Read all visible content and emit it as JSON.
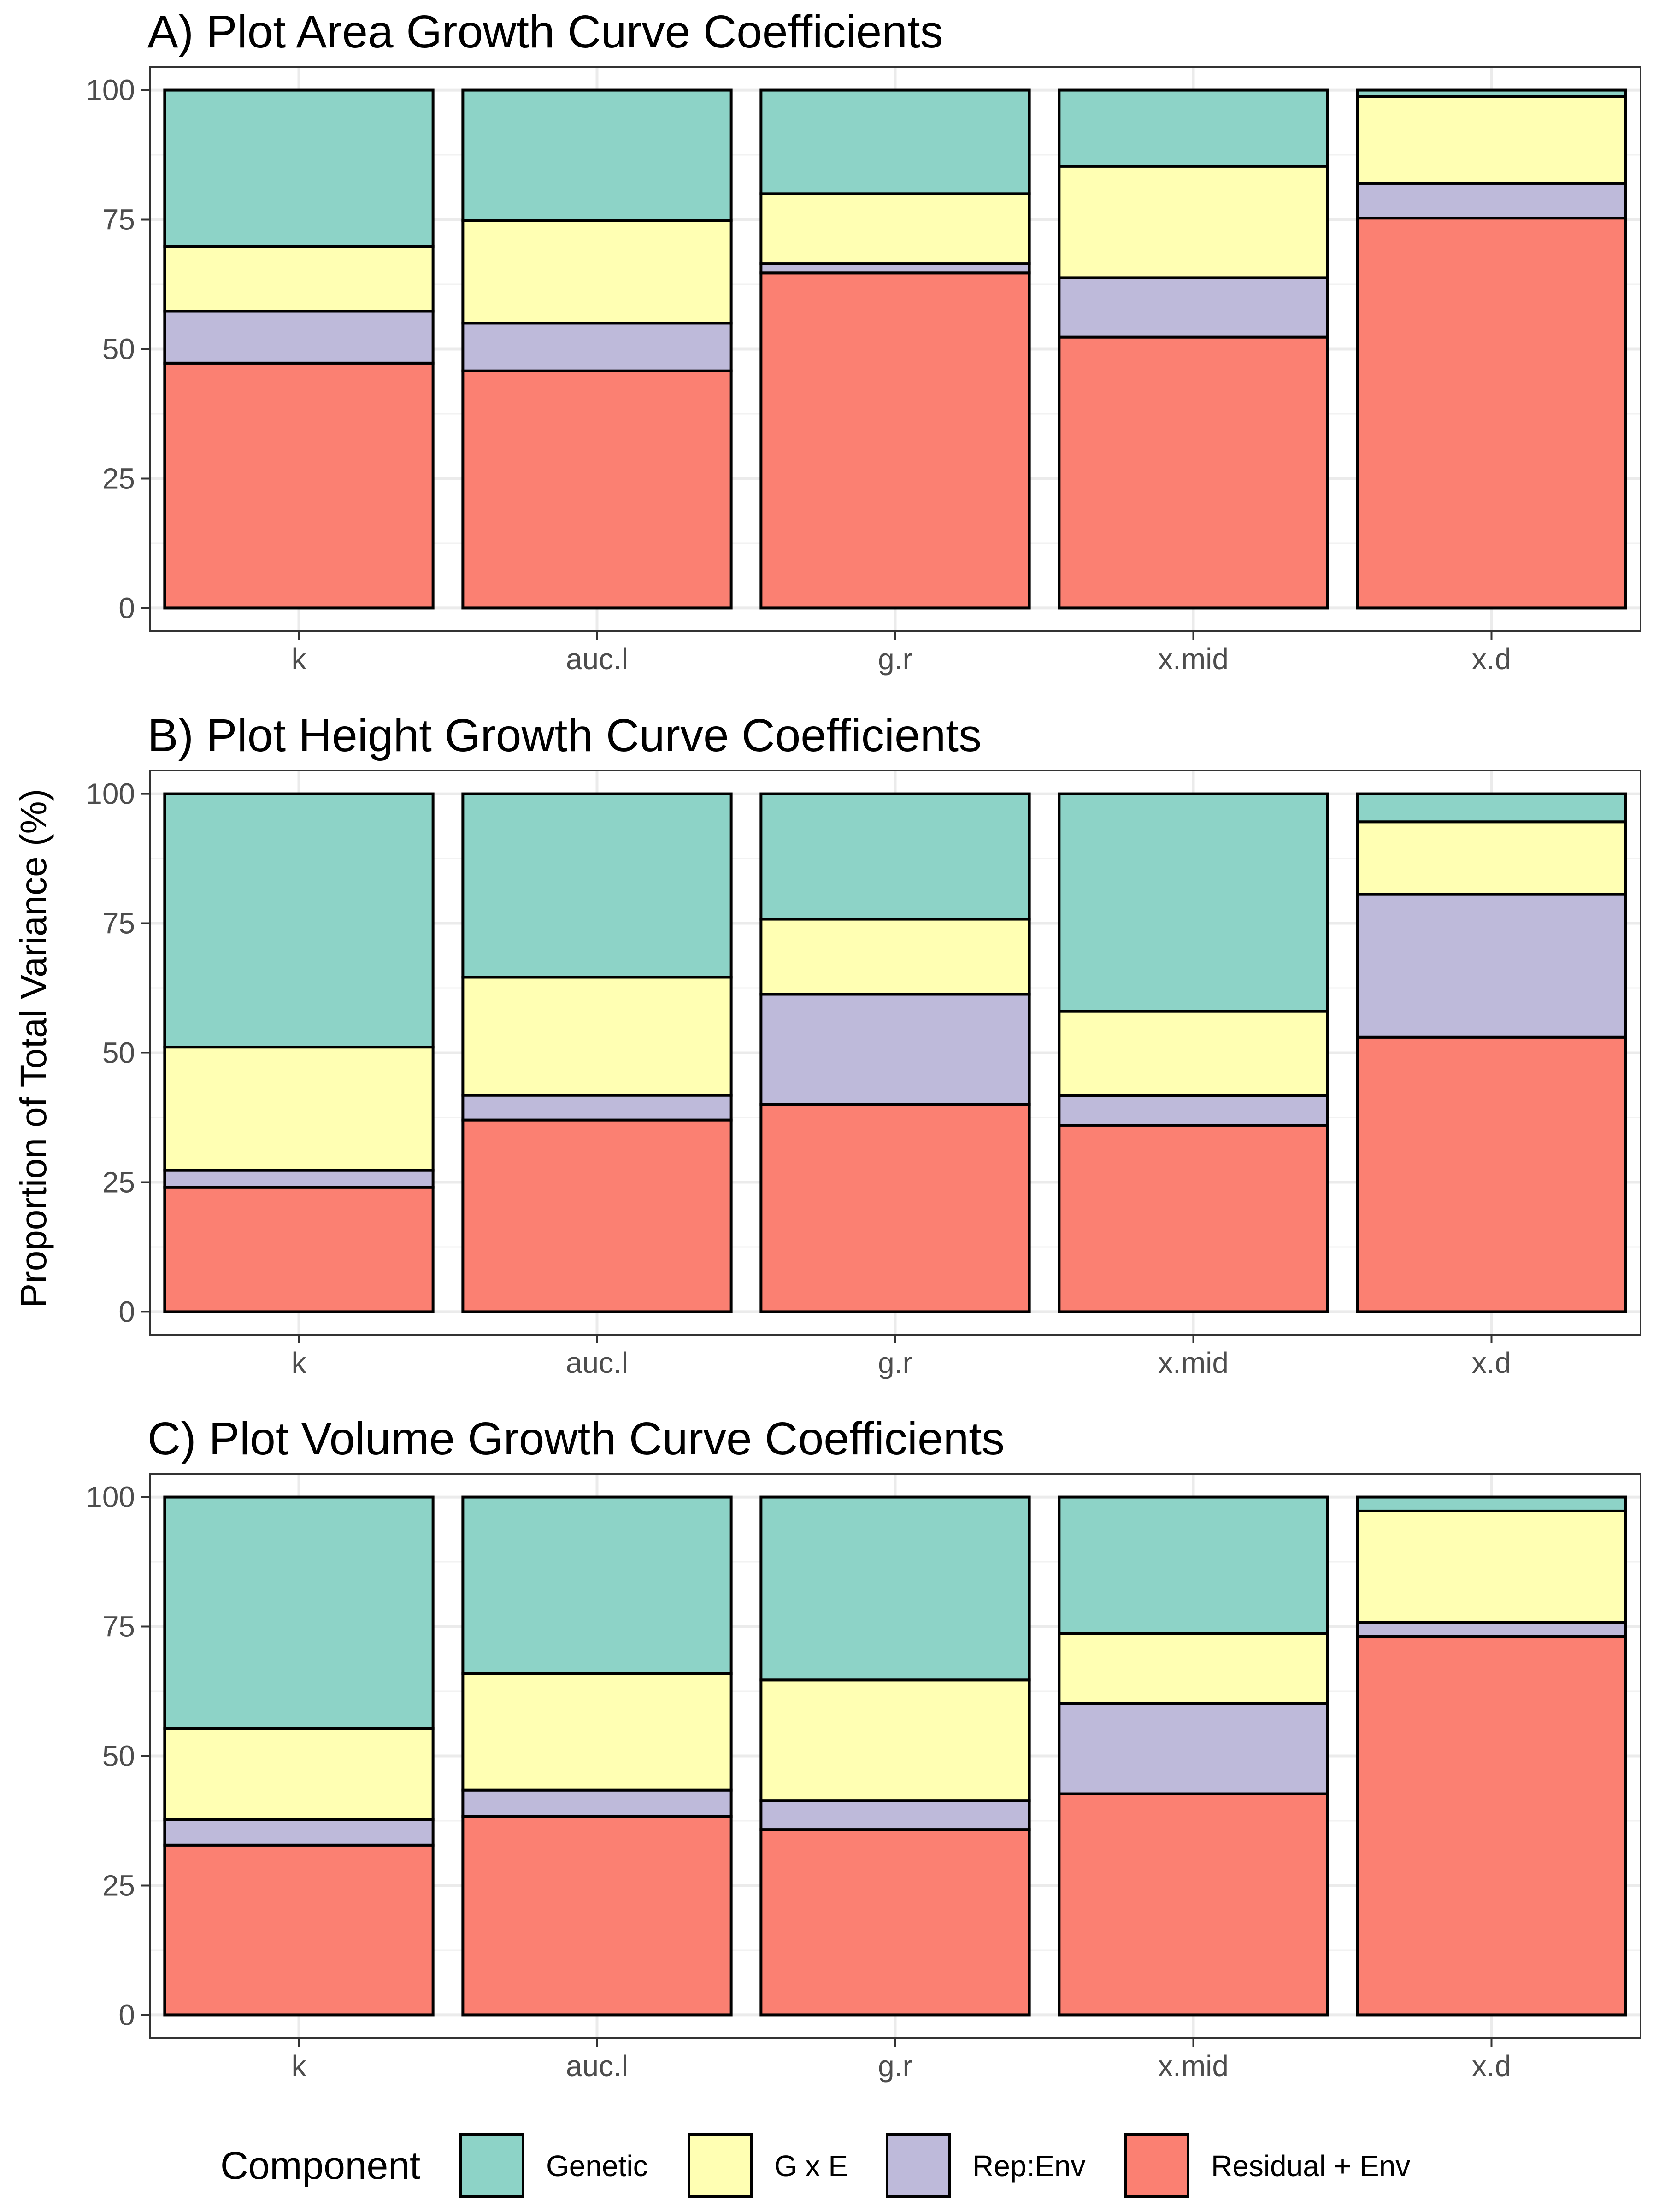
{
  "y_axis_title": "Proportion of Total Variance (%)",
  "legend": {
    "title": "Component",
    "items": [
      {
        "label": "Genetic",
        "color": "#8dd3c7"
      },
      {
        "label": "G x E",
        "color": "#ffffb3"
      },
      {
        "label": "Rep:Env",
        "color": "#bebada"
      },
      {
        "label": "Residual + Env",
        "color": "#fb8072"
      }
    ]
  },
  "chart_data": [
    {
      "type": "bar",
      "stacked": true,
      "title": "A) Plot Area Growth Curve Coefficients",
      "categories": [
        "k",
        "auc.l",
        "g.r",
        "x.mid",
        "x.d"
      ],
      "ylim": [
        0,
        100
      ],
      "yticks": [
        0,
        25,
        50,
        75,
        100
      ],
      "grid": true,
      "series": [
        {
          "name": "Residual + Env",
          "color": "#fb8072",
          "values": [
            47.3,
            45.8,
            64.7,
            52.3,
            75.3
          ]
        },
        {
          "name": "Rep:Env",
          "color": "#bebada",
          "values": [
            10.0,
            9.2,
            1.8,
            11.5,
            6.7
          ]
        },
        {
          "name": "G x E",
          "color": "#ffffb3",
          "values": [
            12.5,
            19.8,
            13.5,
            21.5,
            16.8
          ]
        },
        {
          "name": "Genetic",
          "color": "#8dd3c7",
          "values": [
            30.2,
            25.2,
            20.0,
            14.7,
            1.2
          ]
        }
      ]
    },
    {
      "type": "bar",
      "stacked": true,
      "title": "B) Plot Height Growth Curve Coefficients",
      "categories": [
        "k",
        "auc.l",
        "g.r",
        "x.mid",
        "x.d"
      ],
      "ylim": [
        0,
        100
      ],
      "yticks": [
        0,
        25,
        50,
        75,
        100
      ],
      "grid": true,
      "series": [
        {
          "name": "Residual + Env",
          "color": "#fb8072",
          "values": [
            24.0,
            37.0,
            40.0,
            36.0,
            53.0
          ]
        },
        {
          "name": "Rep:Env",
          "color": "#bebada",
          "values": [
            3.3,
            4.8,
            21.3,
            5.7,
            27.6
          ]
        },
        {
          "name": "G x E",
          "color": "#ffffb3",
          "values": [
            23.8,
            22.8,
            14.5,
            16.3,
            14.0
          ]
        },
        {
          "name": "Genetic",
          "color": "#8dd3c7",
          "values": [
            48.9,
            35.4,
            24.2,
            42.0,
            5.4
          ]
        }
      ]
    },
    {
      "type": "bar",
      "stacked": true,
      "title": "C) Plot Volume Growth Curve Coefficients",
      "categories": [
        "k",
        "auc.l",
        "g.r",
        "x.mid",
        "x.d"
      ],
      "ylim": [
        0,
        100
      ],
      "yticks": [
        0,
        25,
        50,
        75,
        100
      ],
      "grid": true,
      "series": [
        {
          "name": "Residual + Env",
          "color": "#fb8072",
          "values": [
            32.8,
            38.3,
            35.8,
            42.7,
            73.0
          ]
        },
        {
          "name": "Rep:Env",
          "color": "#bebada",
          "values": [
            4.9,
            5.1,
            5.6,
            17.4,
            2.8
          ]
        },
        {
          "name": "G x E",
          "color": "#ffffb3",
          "values": [
            17.6,
            22.5,
            23.3,
            13.6,
            21.5
          ]
        },
        {
          "name": "Genetic",
          "color": "#8dd3c7",
          "values": [
            44.7,
            34.1,
            35.3,
            26.3,
            2.7
          ]
        }
      ]
    }
  ]
}
